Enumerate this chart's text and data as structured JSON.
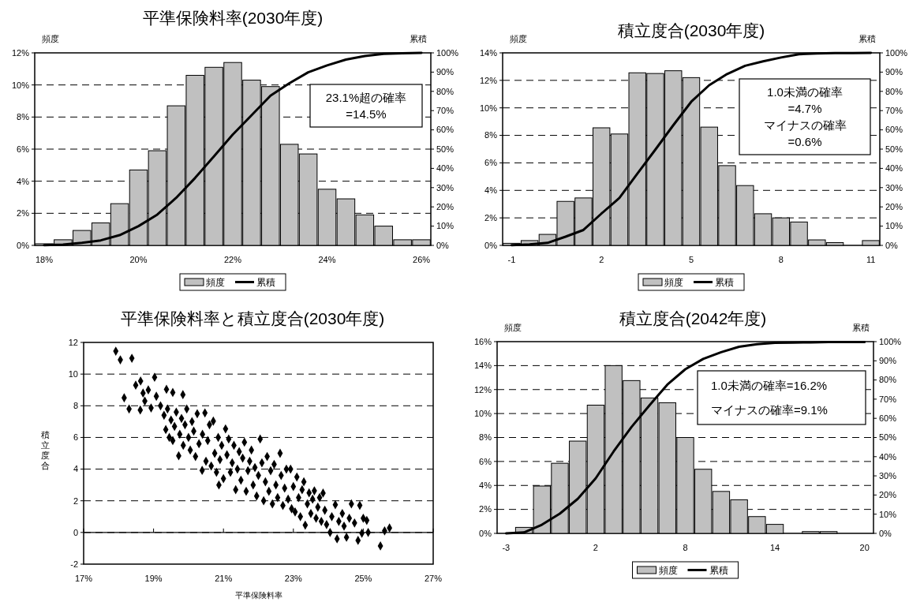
{
  "chart_data": [
    {
      "type": "bar",
      "title": "平準保険料率(2030年度)",
      "ylabel": "頻度",
      "y2label": "累積",
      "categories": [
        "18%",
        null,
        null,
        null,
        null,
        "20%",
        null,
        null,
        null,
        null,
        "22%",
        null,
        null,
        null,
        null,
        "24%",
        null,
        null,
        null,
        null,
        "26%"
      ],
      "series": [
        {
          "name": "頻度",
          "type": "bar",
          "color": "#c0c0c0",
          "values": [
            0.1,
            0.35,
            0.93,
            1.4,
            2.6,
            4.7,
            5.9,
            8.7,
            10.6,
            11.1,
            11.4,
            10.3,
            9.9,
            6.3,
            5.7,
            3.5,
            2.9,
            1.9,
            1.2,
            0.35,
            0.35
          ]
        },
        {
          "name": "累積",
          "type": "line",
          "axis": "y2",
          "color": "#000000",
          "values": [
            0.1,
            0.4,
            1.3,
            2.6,
            5.3,
            10.0,
            16.0,
            24.7,
            35.0,
            46.2,
            57.6,
            67.6,
            77.8,
            84.2,
            89.9,
            93.5,
            96.5,
            98.4,
            99.5,
            99.8,
            100
          ]
        }
      ],
      "ylim": [
        0,
        12
      ],
      "yticks": [
        {
          "value": 0,
          "label": "0%"
        },
        {
          "value": 2,
          "label": "2%"
        },
        {
          "value": 4,
          "label": "4%"
        },
        {
          "value": 6,
          "label": "6%"
        },
        {
          "value": 8,
          "label": "8%"
        },
        {
          "value": 10,
          "label": "10%"
        },
        {
          "value": 12,
          "label": "12%"
        }
      ],
      "y2lim": [
        0,
        100
      ],
      "y2ticks": [
        {
          "value": 0,
          "label": "0%"
        },
        {
          "value": 10,
          "label": "10%"
        },
        {
          "value": 20,
          "label": "20%"
        },
        {
          "value": 30,
          "label": "30%"
        },
        {
          "value": 40,
          "label": "40%"
        },
        {
          "value": 50,
          "label": "50%"
        },
        {
          "value": 60,
          "label": "60%"
        },
        {
          "value": 70,
          "label": "70%"
        },
        {
          "value": 80,
          "label": "80%"
        },
        {
          "value": 90,
          "label": "90%"
        },
        {
          "value": 100,
          "label": "100%"
        }
      ],
      "grid": "y",
      "legend": "bottom",
      "annotations": [
        "23.1%超の確率\n=14.5%"
      ]
    },
    {
      "type": "bar",
      "title": "積立度合(2030年度)",
      "ylabel": "頻度",
      "y2label": "累積",
      "categories": [
        "-1",
        null,
        null,
        null,
        null,
        "2",
        null,
        null,
        null,
        null,
        "5",
        null,
        null,
        null,
        null,
        "8",
        null,
        null,
        null,
        null,
        "11"
      ],
      "series": [
        {
          "name": "頻度",
          "type": "bar",
          "color": "#c0c0c0",
          "values": [
            0.15,
            0.35,
            0.8,
            3.2,
            3.45,
            8.55,
            8.1,
            12.55,
            12.5,
            12.7,
            12.2,
            8.6,
            5.8,
            4.35,
            2.3,
            2.0,
            1.7,
            0.4,
            0.2,
            0,
            0.35
          ]
        },
        {
          "name": "累積",
          "type": "line",
          "axis": "y2",
          "color": "#000000",
          "values": [
            0.1,
            0.5,
            1.3,
            4.5,
            8.0,
            16.5,
            24.6,
            37.2,
            49.7,
            62.4,
            74.6,
            83.2,
            89.0,
            93.3,
            95.6,
            97.6,
            99.3,
            99.7,
            99.9,
            99.9,
            100
          ]
        }
      ],
      "ylim": [
        0,
        14
      ],
      "yticks": [
        {
          "value": 0,
          "label": "0%"
        },
        {
          "value": 2,
          "label": "2%"
        },
        {
          "value": 4,
          "label": "4%"
        },
        {
          "value": 6,
          "label": "6%"
        },
        {
          "value": 8,
          "label": "8%"
        },
        {
          "value": 10,
          "label": "10%"
        },
        {
          "value": 12,
          "label": "12%"
        },
        {
          "value": 14,
          "label": "14%"
        }
      ],
      "y2lim": [
        0,
        100
      ],
      "y2ticks": [
        {
          "value": 0,
          "label": "0%"
        },
        {
          "value": 10,
          "label": "10%"
        },
        {
          "value": 20,
          "label": "20%"
        },
        {
          "value": 30,
          "label": "30%"
        },
        {
          "value": 40,
          "label": "40%"
        },
        {
          "value": 50,
          "label": "50%"
        },
        {
          "value": 60,
          "label": "60%"
        },
        {
          "value": 70,
          "label": "70%"
        },
        {
          "value": 80,
          "label": "80%"
        },
        {
          "value": 90,
          "label": "90%"
        },
        {
          "value": 100,
          "label": "100%"
        }
      ],
      "grid": "y",
      "legend": "bottom",
      "annotations": [
        "1.0未満の確率\n=4.7%\nマイナスの確率\n=0.6%"
      ]
    },
    {
      "type": "scatter",
      "title": "平準保険料率と積立度合(2030年度)",
      "xlabel": "平準保険料率",
      "ylabel": "積立度合",
      "marker": "diamond",
      "color": "#000000",
      "x": [
        17.92,
        18.05,
        18.38,
        18.16,
        18.3,
        18.49,
        18.63,
        18.62,
        18.7,
        18.75,
        18.85,
        18.93,
        19.03,
        19.08,
        19.2,
        19.37,
        19.55,
        19.84,
        19.3,
        19.35,
        19.4,
        19.45,
        19.5,
        19.55,
        19.6,
        19.65,
        19.72,
        19.75,
        19.8,
        19.85,
        19.9,
        19.95,
        20.0,
        20.05,
        20.1,
        20.15,
        20.2,
        20.25,
        20.3,
        20.39,
        20.4,
        20.47,
        20.5,
        20.55,
        20.6,
        20.65,
        20.71,
        20.75,
        20.8,
        20.85,
        20.87,
        20.9,
        20.95,
        21.0,
        21.06,
        21.1,
        21.15,
        21.2,
        21.25,
        21.3,
        21.35,
        21.4,
        21.45,
        21.5,
        21.55,
        21.6,
        21.65,
        21.7,
        21.75,
        21.8,
        21.85,
        21.9,
        21.95,
        22.0,
        22.05,
        22.1,
        22.15,
        22.2,
        22.25,
        22.3,
        22.35,
        22.4,
        22.45,
        22.5,
        22.55,
        22.62,
        22.65,
        22.7,
        22.75,
        22.8,
        22.85,
        22.92,
        22.95,
        23.0,
        23.05,
        23.1,
        23.15,
        23.2,
        23.25,
        23.3,
        23.34,
        23.4,
        23.45,
        23.5,
        23.55,
        23.6,
        23.65,
        23.7,
        23.75,
        23.8,
        23.85,
        23.9,
        23.95,
        24.05,
        24.1,
        24.2,
        24.25,
        24.3,
        24.4,
        24.45,
        24.52,
        24.6,
        24.66,
        24.75,
        24.85,
        24.9,
        24.96,
        25.0,
        25.1,
        25.14,
        25.49,
        25.61,
        25.75
      ],
      "values": [
        11.45,
        10.9,
        11.0,
        8.5,
        7.8,
        9.3,
        9.56,
        7.73,
        8.8,
        8.3,
        9.0,
        7.86,
        9.8,
        8.6,
        8.0,
        9.04,
        8.84,
        8.7,
        7.4,
        6.5,
        7.8,
        6.0,
        7.1,
        5.8,
        6.7,
        7.6,
        4.84,
        6.2,
        7.2,
        5.5,
        6.8,
        7.8,
        6.0,
        5.2,
        7.0,
        6.4,
        4.8,
        7.5,
        5.6,
        3.92,
        6.2,
        7.55,
        4.5,
        5.8,
        6.8,
        4.2,
        7.03,
        5.0,
        3.8,
        6.0,
        3.0,
        4.6,
        5.5,
        3.4,
        6.54,
        4.9,
        5.9,
        3.8,
        4.4,
        5.5,
        2.7,
        4.0,
        5.1,
        3.3,
        4.7,
        5.7,
        2.6,
        3.9,
        4.5,
        5.2,
        3.0,
        4.1,
        2.3,
        3.6,
        5.9,
        4.4,
        2.0,
        3.2,
        4.8,
        2.6,
        3.9,
        1.8,
        4.3,
        3.0,
        2.2,
        5.0,
        3.6,
        1.7,
        2.8,
        4.0,
        2.1,
        4.0,
        1.5,
        2.9,
        1.3,
        3.5,
        2.2,
        1.0,
        2.7,
        3.2,
        0.46,
        1.8,
        2.5,
        1.2,
        2.1,
        2.63,
        0.9,
        1.6,
        2.2,
        0.7,
        2.49,
        1.4,
        0.5,
        0.0,
        1.0,
        1.75,
        -0.4,
        0.7,
        1.2,
        0.4,
        -0.3,
        0.9,
        1.8,
        0.6,
        -0.5,
        1.71,
        -0.05,
        0.9,
        0.76,
        0.0,
        -0.85,
        0.1,
        0.28
      ],
      "xlim": [
        17,
        27
      ],
      "xticks": [
        {
          "value": 17,
          "label": "17%"
        },
        {
          "value": 19,
          "label": "19%"
        },
        {
          "value": 21,
          "label": "21%"
        },
        {
          "value": 23,
          "label": "23%"
        },
        {
          "value": 25,
          "label": "25%"
        },
        {
          "value": 27,
          "label": "27%"
        }
      ],
      "ylim": [
        -2,
        12
      ],
      "yticks": [
        -2,
        0,
        2,
        4,
        6,
        8,
        10,
        12
      ],
      "grid": "y"
    },
    {
      "type": "bar",
      "title": "積立度合(2042年度)",
      "ylabel": "頻度",
      "y2label": "累積",
      "categories": [
        "-3",
        null,
        null,
        null,
        null,
        "2",
        null,
        null,
        null,
        null,
        "8",
        null,
        null,
        null,
        null,
        "14",
        null,
        null,
        null,
        null,
        "20"
      ],
      "series": [
        {
          "name": "頻度",
          "type": "bar",
          "color": "#c0c0c0",
          "values": [
            0,
            0.5,
            3.95,
            5.85,
            7.7,
            10.7,
            14.0,
            12.75,
            11.3,
            10.9,
            8.0,
            5.35,
            3.5,
            2.8,
            1.4,
            0.75,
            0,
            0.15,
            0.15,
            0,
            0
          ]
        },
        {
          "name": "累積",
          "type": "line",
          "axis": "y2",
          "color": "#000000",
          "values": [
            0,
            0.5,
            4.5,
            10.3,
            18.0,
            28.7,
            42.7,
            55.5,
            66.8,
            77.6,
            85.6,
            91.0,
            94.5,
            97.3,
            98.7,
            99.4,
            99.5,
            99.6,
            99.8,
            99.8,
            99.8
          ]
        }
      ],
      "ylim": [
        0,
        16
      ],
      "yticks": [
        {
          "value": 0,
          "label": "0%"
        },
        {
          "value": 2,
          "label": "2%"
        },
        {
          "value": 4,
          "label": "4%"
        },
        {
          "value": 6,
          "label": "6%"
        },
        {
          "value": 8,
          "label": "8%"
        },
        {
          "value": 10,
          "label": "10%"
        },
        {
          "value": 12,
          "label": "12%"
        },
        {
          "value": 14,
          "label": "14%"
        },
        {
          "value": 16,
          "label": "16%"
        }
      ],
      "y2lim": [
        0,
        100
      ],
      "y2ticks": [
        {
          "value": 0,
          "label": "0%"
        },
        {
          "value": 10,
          "label": "10%"
        },
        {
          "value": 20,
          "label": "20%"
        },
        {
          "value": 30,
          "label": "30%"
        },
        {
          "value": 40,
          "label": "40%"
        },
        {
          "value": 50,
          "label": "50%"
        },
        {
          "value": 60,
          "label": "60%"
        },
        {
          "value": 70,
          "label": "70%"
        },
        {
          "value": 80,
          "label": "80%"
        },
        {
          "value": 90,
          "label": "90%"
        },
        {
          "value": 100,
          "label": "100%"
        }
      ],
      "grid": "y",
      "legend": "bottom",
      "annotations": [
        "1.0未満の確率=16.2%",
        "マイナスの確率=9.1%"
      ]
    }
  ]
}
